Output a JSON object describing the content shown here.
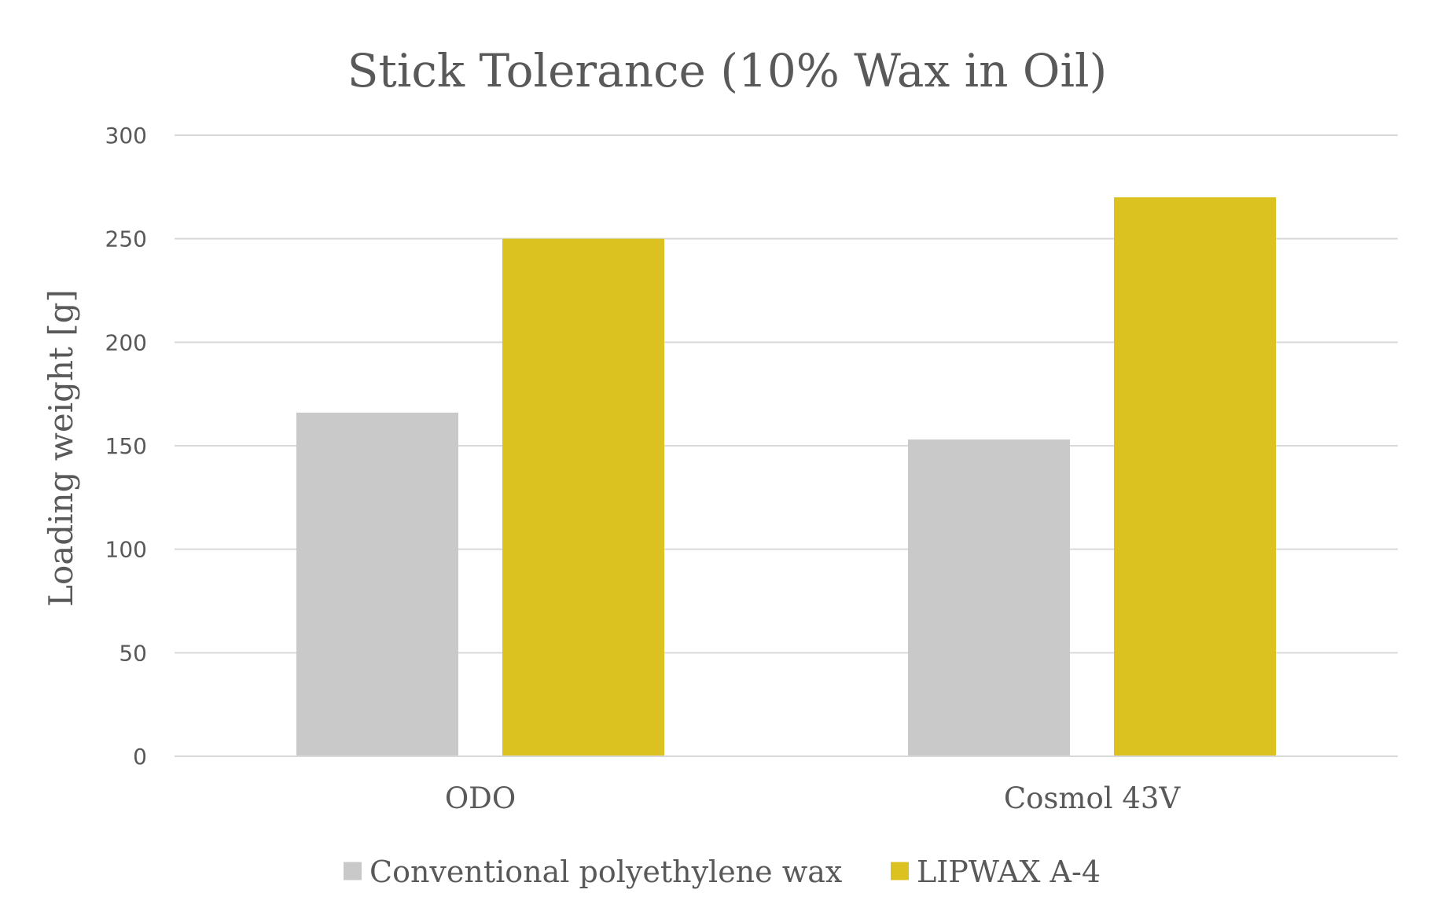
{
  "chart_data": {
    "type": "bar",
    "title": "Stick Tolerance (10% Wax in Oil)",
    "xlabel": "",
    "ylabel": "Loading weight [g]",
    "categories": [
      "ODO",
      "Cosmol 43V"
    ],
    "series": [
      {
        "name": "Conventional polyethylene wax",
        "values": [
          166,
          153
        ],
        "color": "#c9c9c9"
      },
      {
        "name": "LIPWAX A-4",
        "values": [
          250,
          270
        ],
        "color": "#dcc220"
      }
    ],
    "ylim": [
      0,
      300
    ],
    "yticks": [
      0,
      50,
      100,
      150,
      200,
      250,
      300
    ],
    "grid": true,
    "legend_position": "bottom"
  }
}
